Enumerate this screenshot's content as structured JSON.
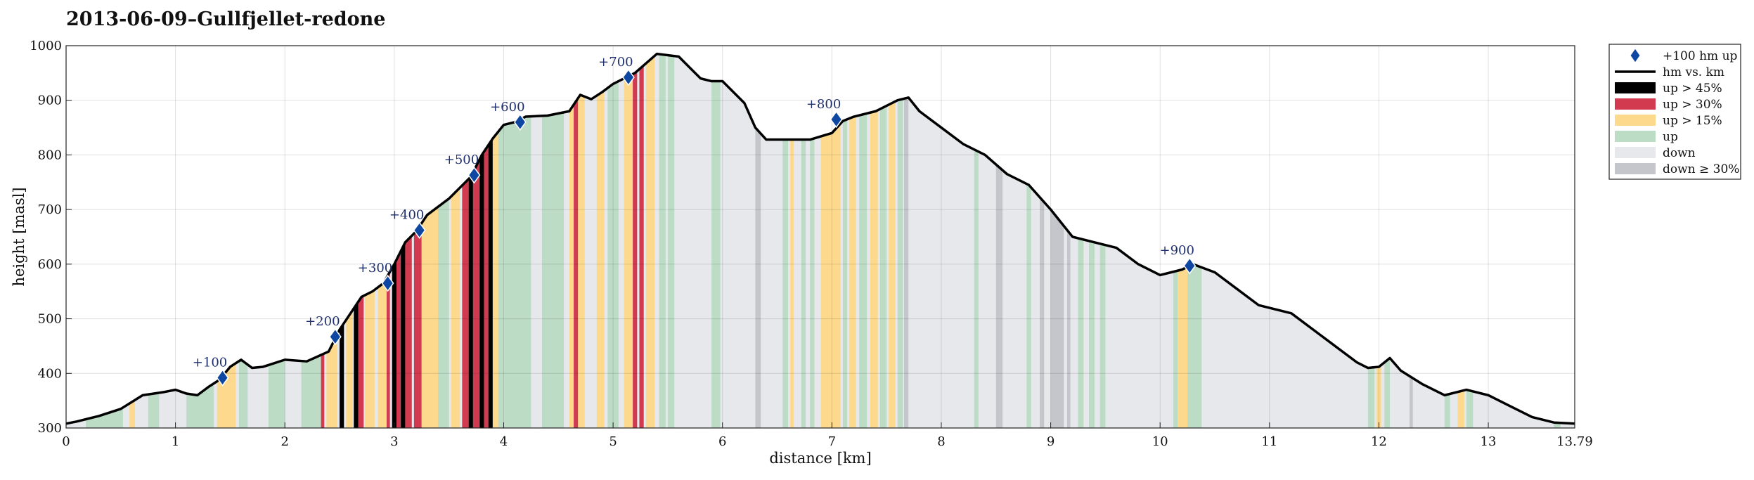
{
  "title": "2013-06-09–Gullfjellet-redone",
  "chart_data": {
    "type": "area",
    "title": "2013-06-09–Gullfjellet-redone",
    "xlabel": "distance [km]",
    "ylabel": "height [masl]",
    "xlim": [
      0,
      13.79
    ],
    "ylim": [
      300,
      1000
    ],
    "x_ticks": [
      "0",
      "1",
      "2",
      "3",
      "4",
      "5",
      "6",
      "7",
      "8",
      "9",
      "10",
      "11",
      "12",
      "13",
      "13.79"
    ],
    "y_ticks": [
      "300",
      "400",
      "500",
      "600",
      "700",
      "800",
      "900",
      "1000"
    ],
    "grid": true,
    "legend_position": "outside-top-right",
    "colors": {
      "profile": "#000000",
      "marker": "#0d47a1",
      "up_45": "#000000",
      "up_30": "#d13a4f",
      "up_15": "#fcd98c",
      "up": "#bcdcc6",
      "down": "#e6e8ec",
      "down_30": "#c5c6cc"
    },
    "legend": [
      {
        "key": "marker",
        "label": "+100 hm up",
        "style": "diamond"
      },
      {
        "key": "profile",
        "label": "hm vs. km",
        "style": "line"
      },
      {
        "key": "up_45",
        "label": "up > 45%",
        "style": "box"
      },
      {
        "key": "up_30",
        "label": "up > 30%",
        "style": "box"
      },
      {
        "key": "up_15",
        "label": "up > 15%",
        "style": "box"
      },
      {
        "key": "up",
        "label": "up",
        "style": "box"
      },
      {
        "key": "down",
        "label": "down",
        "style": "box"
      },
      {
        "key": "down_30",
        "label": "down ≥ 30%",
        "style": "box"
      }
    ],
    "profile": {
      "x": [
        0,
        0.1,
        0.3,
        0.5,
        0.7,
        0.9,
        1.0,
        1.1,
        1.2,
        1.3,
        1.4,
        1.5,
        1.6,
        1.7,
        1.8,
        2.0,
        2.2,
        2.4,
        2.5,
        2.6,
        2.7,
        2.8,
        2.9,
        3.0,
        3.1,
        3.2,
        3.3,
        3.5,
        3.7,
        3.8,
        3.9,
        4.0,
        4.1,
        4.2,
        4.4,
        4.6,
        4.7,
        4.8,
        4.9,
        5.0,
        5.2,
        5.4,
        5.6,
        5.7,
        5.8,
        5.9,
        6.0,
        6.2,
        6.3,
        6.4,
        6.6,
        6.8,
        7.0,
        7.1,
        7.2,
        7.4,
        7.6,
        7.7,
        7.8,
        8.0,
        8.2,
        8.4,
        8.6,
        8.8,
        9.0,
        9.2,
        9.4,
        9.6,
        9.8,
        10.0,
        10.2,
        10.3,
        10.5,
        10.7,
        10.9,
        11.0,
        11.2,
        11.4,
        11.6,
        11.8,
        11.9,
        12.0,
        12.1,
        12.2,
        12.4,
        12.6,
        12.8,
        13.0,
        13.2,
        13.4,
        13.6,
        13.79
      ],
      "y": [
        308,
        312,
        322,
        335,
        360,
        366,
        370,
        363,
        360,
        375,
        388,
        412,
        425,
        410,
        412,
        425,
        422,
        440,
        480,
        510,
        540,
        550,
        565,
        600,
        640,
        660,
        690,
        720,
        760,
        800,
        830,
        855,
        860,
        870,
        872,
        880,
        910,
        902,
        915,
        930,
        950,
        985,
        980,
        960,
        940,
        935,
        935,
        895,
        850,
        828,
        828,
        828,
        840,
        862,
        870,
        880,
        900,
        905,
        880,
        850,
        820,
        800,
        765,
        745,
        700,
        650,
        640,
        630,
        600,
        580,
        590,
        600,
        585,
        555,
        525,
        520,
        510,
        480,
        450,
        420,
        410,
        412,
        428,
        405,
        380,
        360,
        370,
        360,
        340,
        320,
        310,
        308
      ]
    },
    "segments": [
      {
        "x0": 0.18,
        "x1": 0.52,
        "cls": "up"
      },
      {
        "x0": 0.58,
        "x1": 0.63,
        "cls": "up_15"
      },
      {
        "x0": 0.75,
        "x1": 0.85,
        "cls": "up"
      },
      {
        "x0": 1.1,
        "x1": 1.35,
        "cls": "up"
      },
      {
        "x0": 1.38,
        "x1": 1.55,
        "cls": "up_15"
      },
      {
        "x0": 1.58,
        "x1": 1.66,
        "cls": "up"
      },
      {
        "x0": 1.85,
        "x1": 2.0,
        "cls": "up"
      },
      {
        "x0": 2.15,
        "x1": 2.33,
        "cls": "up"
      },
      {
        "x0": 2.33,
        "x1": 2.36,
        "cls": "up_30"
      },
      {
        "x0": 2.38,
        "x1": 2.48,
        "cls": "up_15"
      },
      {
        "x0": 2.5,
        "x1": 2.54,
        "cls": "up_45"
      },
      {
        "x0": 2.56,
        "x1": 2.62,
        "cls": "up_15"
      },
      {
        "x0": 2.63,
        "x1": 2.67,
        "cls": "up_45"
      },
      {
        "x0": 2.67,
        "x1": 2.72,
        "cls": "up_30"
      },
      {
        "x0": 2.73,
        "x1": 2.82,
        "cls": "up_15"
      },
      {
        "x0": 2.85,
        "x1": 2.93,
        "cls": "up_15"
      },
      {
        "x0": 2.93,
        "x1": 2.96,
        "cls": "up_30"
      },
      {
        "x0": 2.98,
        "x1": 3.02,
        "cls": "up_45"
      },
      {
        "x0": 3.02,
        "x1": 3.06,
        "cls": "up_30"
      },
      {
        "x0": 3.06,
        "x1": 3.1,
        "cls": "up_45"
      },
      {
        "x0": 3.1,
        "x1": 3.16,
        "cls": "up_30"
      },
      {
        "x0": 3.18,
        "x1": 3.25,
        "cls": "up_30"
      },
      {
        "x0": 3.25,
        "x1": 3.4,
        "cls": "up_15"
      },
      {
        "x0": 3.4,
        "x1": 3.5,
        "cls": "up"
      },
      {
        "x0": 3.52,
        "x1": 3.6,
        "cls": "up_15"
      },
      {
        "x0": 3.62,
        "x1": 3.68,
        "cls": "up_30"
      },
      {
        "x0": 3.68,
        "x1": 3.72,
        "cls": "up_45"
      },
      {
        "x0": 3.72,
        "x1": 3.78,
        "cls": "up_30"
      },
      {
        "x0": 3.78,
        "x1": 3.82,
        "cls": "up_45"
      },
      {
        "x0": 3.82,
        "x1": 3.86,
        "cls": "up_30"
      },
      {
        "x0": 3.86,
        "x1": 3.9,
        "cls": "up_45"
      },
      {
        "x0": 3.9,
        "x1": 3.95,
        "cls": "up_15"
      },
      {
        "x0": 3.95,
        "x1": 4.25,
        "cls": "up"
      },
      {
        "x0": 4.35,
        "x1": 4.55,
        "cls": "up"
      },
      {
        "x0": 4.6,
        "x1": 4.64,
        "cls": "up_15"
      },
      {
        "x0": 4.64,
        "x1": 4.68,
        "cls": "up_30"
      },
      {
        "x0": 4.68,
        "x1": 4.74,
        "cls": "up_15"
      },
      {
        "x0": 4.85,
        "x1": 4.92,
        "cls": "up_15"
      },
      {
        "x0": 4.95,
        "x1": 5.05,
        "cls": "up"
      },
      {
        "x0": 5.1,
        "x1": 5.18,
        "cls": "up_15"
      },
      {
        "x0": 5.18,
        "x1": 5.22,
        "cls": "up_30"
      },
      {
        "x0": 5.24,
        "x1": 5.28,
        "cls": "up_30"
      },
      {
        "x0": 5.3,
        "x1": 5.38,
        "cls": "up_15"
      },
      {
        "x0": 5.42,
        "x1": 5.48,
        "cls": "up"
      },
      {
        "x0": 5.5,
        "x1": 5.56,
        "cls": "up"
      },
      {
        "x0": 5.9,
        "x1": 5.98,
        "cls": "up"
      },
      {
        "x0": 6.3,
        "x1": 6.35,
        "cls": "down_30"
      },
      {
        "x0": 6.55,
        "x1": 6.6,
        "cls": "up"
      },
      {
        "x0": 6.62,
        "x1": 6.65,
        "cls": "up_15"
      },
      {
        "x0": 6.72,
        "x1": 6.76,
        "cls": "up"
      },
      {
        "x0": 6.8,
        "x1": 6.84,
        "cls": "up"
      },
      {
        "x0": 6.9,
        "x1": 7.08,
        "cls": "up_15"
      },
      {
        "x0": 7.1,
        "x1": 7.14,
        "cls": "up"
      },
      {
        "x0": 7.16,
        "x1": 7.22,
        "cls": "up_15"
      },
      {
        "x0": 7.25,
        "x1": 7.32,
        "cls": "up"
      },
      {
        "x0": 7.35,
        "x1": 7.42,
        "cls": "up_15"
      },
      {
        "x0": 7.44,
        "x1": 7.5,
        "cls": "up"
      },
      {
        "x0": 7.52,
        "x1": 7.58,
        "cls": "up_15"
      },
      {
        "x0": 7.6,
        "x1": 7.65,
        "cls": "up"
      },
      {
        "x0": 7.66,
        "x1": 7.7,
        "cls": "down_30"
      },
      {
        "x0": 8.3,
        "x1": 8.34,
        "cls": "up"
      },
      {
        "x0": 8.5,
        "x1": 8.56,
        "cls": "down_30"
      },
      {
        "x0": 8.78,
        "x1": 8.82,
        "cls": "up"
      },
      {
        "x0": 8.9,
        "x1": 8.94,
        "cls": "down_30"
      },
      {
        "x0": 9.0,
        "x1": 9.12,
        "cls": "down_30"
      },
      {
        "x0": 9.15,
        "x1": 9.18,
        "cls": "down_30"
      },
      {
        "x0": 9.25,
        "x1": 9.3,
        "cls": "up"
      },
      {
        "x0": 9.35,
        "x1": 9.4,
        "cls": "up"
      },
      {
        "x0": 9.45,
        "x1": 9.5,
        "cls": "up"
      },
      {
        "x0": 10.12,
        "x1": 10.16,
        "cls": "up"
      },
      {
        "x0": 10.16,
        "x1": 10.25,
        "cls": "up_15"
      },
      {
        "x0": 10.25,
        "x1": 10.38,
        "cls": "up"
      },
      {
        "x0": 11.9,
        "x1": 11.96,
        "cls": "up"
      },
      {
        "x0": 11.98,
        "x1": 12.02,
        "cls": "up_15"
      },
      {
        "x0": 12.05,
        "x1": 12.1,
        "cls": "up"
      },
      {
        "x0": 12.28,
        "x1": 12.31,
        "cls": "down_30"
      },
      {
        "x0": 12.6,
        "x1": 12.65,
        "cls": "up"
      },
      {
        "x0": 12.72,
        "x1": 12.78,
        "cls": "up_15"
      },
      {
        "x0": 12.8,
        "x1": 12.86,
        "cls": "up"
      },
      {
        "x0": 13.6,
        "x1": 13.66,
        "cls": "up"
      }
    ],
    "markers": [
      {
        "x": 1.43,
        "y": 392,
        "label": "+100"
      },
      {
        "x": 2.46,
        "y": 467,
        "label": "+200"
      },
      {
        "x": 2.94,
        "y": 565,
        "label": "+300"
      },
      {
        "x": 3.23,
        "y": 662,
        "label": "+400"
      },
      {
        "x": 3.73,
        "y": 763,
        "label": "+500"
      },
      {
        "x": 4.15,
        "y": 860,
        "label": "+600"
      },
      {
        "x": 5.14,
        "y": 942,
        "label": "+700"
      },
      {
        "x": 7.04,
        "y": 865,
        "label": "+800"
      },
      {
        "x": 10.27,
        "y": 597,
        "label": "+900"
      }
    ]
  }
}
